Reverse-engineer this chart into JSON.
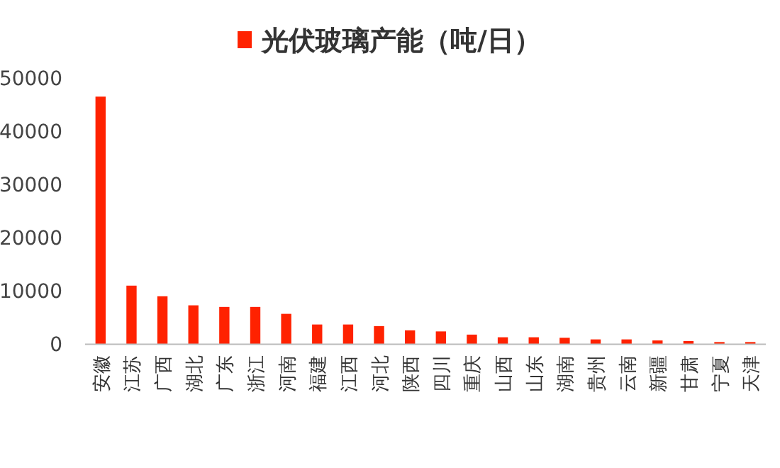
{
  "chart_data": {
    "type": "bar",
    "categories": [
      "安徽",
      "江苏",
      "广西",
      "湖北",
      "广东",
      "浙江",
      "河南",
      "福建",
      "江西",
      "河北",
      "陕西",
      "四川",
      "重庆",
      "山西",
      "山东",
      "湖南",
      "贵州",
      "云南",
      "新疆",
      "甘肃",
      "宁夏",
      "天津"
    ],
    "series": [
      {
        "name": "光伏玻璃产能（吨/日）",
        "color": "#ff2200",
        "values": [
          46500,
          11000,
          9000,
          7300,
          7000,
          7000,
          5700,
          3700,
          3700,
          3400,
          2600,
          2400,
          1800,
          1300,
          1300,
          1200,
          900,
          900,
          700,
          600,
          400,
          400
        ]
      }
    ],
    "ylim": [
      0,
      50000
    ],
    "yticks": [
      0,
      10000,
      20000,
      30000,
      40000,
      50000
    ],
    "legend": "top"
  }
}
